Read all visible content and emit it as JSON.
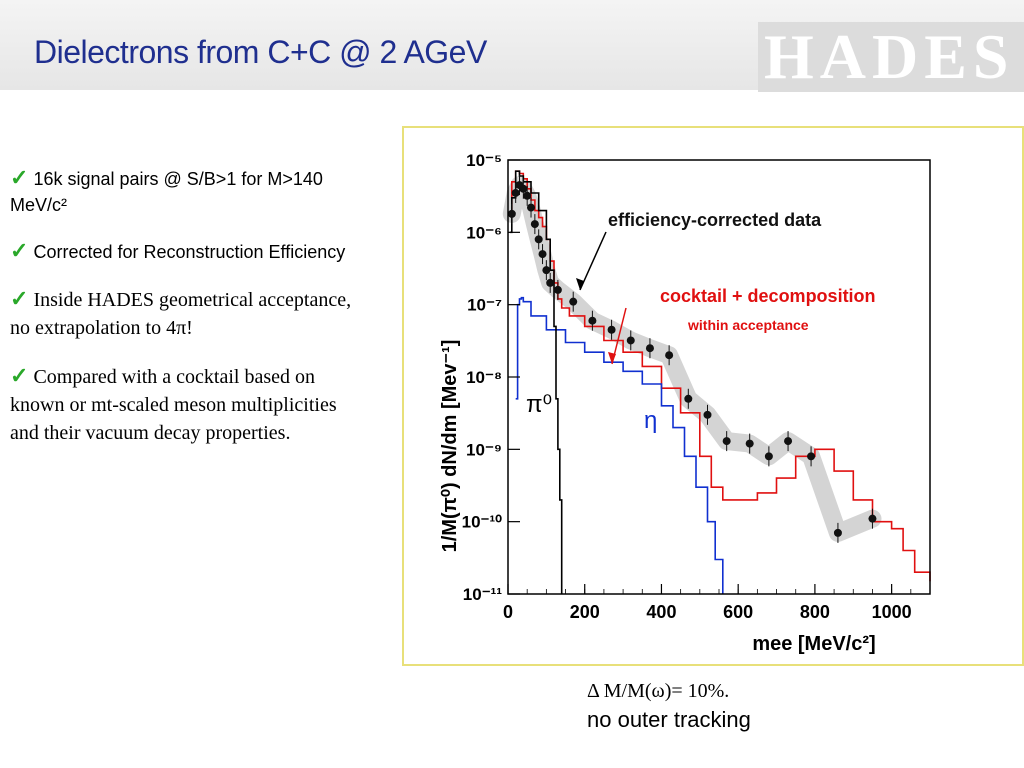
{
  "slide": {
    "title": "Dielectrons from C+C @ 2 AGeV",
    "logo_text": "HADES"
  },
  "bullets": [
    {
      "icon": "checkmark-icon",
      "text": "16k signal pairs @ S/B>1 for M>140 MeV/c²"
    },
    {
      "icon": "checkmark-icon",
      "text": "Corrected for Reconstruction Efficiency"
    },
    {
      "icon": "checkmark-icon",
      "text": "Inside HADES geometrical acceptance, no extrapolation to 4π!"
    },
    {
      "icon": "checkmark-icon",
      "text": "Compared with a cocktail based on known or mt-scaled meson multiplicities and their vacuum decay properties."
    }
  ],
  "caption": {
    "line1": "Δ M/M(ω)= 10%.",
    "line2": "no outer tracking"
  },
  "chart_data": {
    "type": "line",
    "ylabel": "1/M(π⁰) dN/dm [Mev⁻¹]",
    "xlabel": "mee [MeV/c²]",
    "xlim": [
      0,
      1100
    ],
    "ylim": [
      1e-11,
      1e-05
    ],
    "yscale": "log",
    "x_ticks": [
      "0",
      "200",
      "400",
      "600",
      "800",
      "1000"
    ],
    "y_ticks": [
      "10⁻⁵",
      "10⁻⁶",
      "10⁻⁷",
      "10⁻⁸",
      "10⁻⁹",
      "10⁻¹⁰",
      "10⁻¹¹"
    ],
    "annotations": {
      "data_label": "efficiency-corrected data",
      "cocktail_label": "cocktail + decomposition",
      "acceptance_label": "within acceptance",
      "pi0_label": "π⁰",
      "eta_label": "η"
    },
    "colors": {
      "data": "#111111",
      "cocktail": "#e01010",
      "eta": "#1030d0",
      "pi0": "#000000",
      "band": "#d4d4d4",
      "label_red": "#e01010",
      "label_blue": "#1030d0"
    },
    "series": [
      {
        "name": "efficiency-corrected data",
        "style": "points",
        "x": [
          10,
          20,
          30,
          40,
          50,
          60,
          70,
          80,
          90,
          100,
          110,
          130,
          170,
          220,
          270,
          320,
          370,
          420,
          470,
          520,
          570,
          630,
          680,
          730,
          790,
          860,
          950
        ],
        "y": [
          1.8e-06,
          3.5e-06,
          4.5e-06,
          4e-06,
          3.2e-06,
          2.2e-06,
          1.3e-06,
          8e-07,
          5e-07,
          3e-07,
          2e-07,
          1.6e-07,
          1.1e-07,
          6e-08,
          4.5e-08,
          3.2e-08,
          2.5e-08,
          2e-08,
          5e-09,
          3e-09,
          1.3e-09,
          1.2e-09,
          8e-10,
          1.3e-09,
          8e-10,
          7e-11,
          1.1e-10
        ]
      },
      {
        "name": "cocktail + decomposition",
        "style": "line",
        "x": [
          0,
          10,
          20,
          30,
          40,
          50,
          60,
          70,
          80,
          90,
          100,
          110,
          120,
          130,
          140,
          160,
          200,
          250,
          300,
          350,
          400,
          450,
          500,
          530,
          560,
          600,
          650,
          700,
          750,
          800,
          850,
          900,
          950,
          1000,
          1030,
          1060,
          1100
        ],
        "y": [
          1.8e-06,
          5e-06,
          7e-06,
          6.5e-06,
          5.5e-06,
          4e-06,
          2.8e-06,
          2e-06,
          1.6e-06,
          1.2e-06,
          8e-07,
          4e-07,
          2e-07,
          1.2e-07,
          9e-08,
          7e-08,
          5e-08,
          3.2e-08,
          2.2e-08,
          1.4e-08,
          7e-09,
          3.2e-09,
          8e-10,
          3e-10,
          2e-10,
          2e-10,
          2.5e-10,
          4e-10,
          8e-10,
          1e-09,
          5e-10,
          2e-10,
          1e-10,
          8e-11,
          4e-11,
          2e-11,
          1.5e-11
        ]
      },
      {
        "name": "η",
        "style": "line",
        "x": [
          20,
          25,
          30,
          35,
          40,
          60,
          100,
          150,
          200,
          250,
          300,
          350,
          400,
          430,
          460,
          490,
          520,
          540,
          560
        ],
        "y": [
          5e-09,
          1e-07,
          1.2e-07,
          1.25e-07,
          1.1e-07,
          7e-08,
          4.5e-08,
          3e-08,
          2.2e-08,
          1.6e-08,
          1.2e-08,
          8e-09,
          4e-09,
          2e-09,
          8e-10,
          3e-10,
          1e-10,
          3e-11,
          1e-11
        ]
      },
      {
        "name": "π⁰",
        "style": "line",
        "x": [
          5,
          10,
          20,
          30,
          40,
          60,
          80,
          100,
          110,
          120,
          125,
          130,
          135,
          140
        ],
        "y": [
          1e-06,
          3e-06,
          7e-06,
          6e-06,
          5e-06,
          3.5e-06,
          2e-06,
          8e-07,
          3e-07,
          5e-08,
          5e-09,
          1e-09,
          2e-10,
          1e-11
        ]
      }
    ]
  }
}
